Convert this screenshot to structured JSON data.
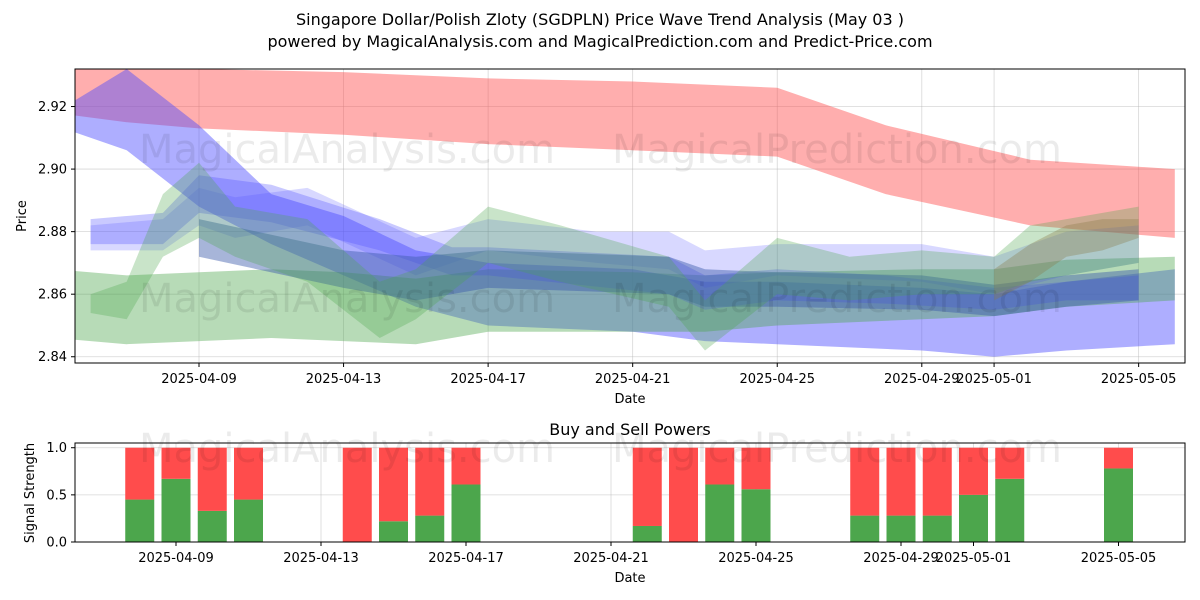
{
  "title_line1": "Singapore Dollar/Polish Zloty (SGDPLN) Price Wave Trend Analysis (May 03 )",
  "title_line2": "powered by MagicalAnalysis.com and MagicalPrediction.com and Predict-Price.com",
  "watermarks": [
    "MagicalAnalysis.com",
    "MagicalPrediction.com"
  ],
  "colors": {
    "red": "#ff4c4c",
    "green": "#4ca64c",
    "blue": "#4c4cff",
    "purple": "#9a4ccc"
  },
  "chart_data": [
    {
      "type": "area",
      "title": "",
      "xlabel": "Date",
      "ylabel": "Price",
      "xlim": [
        "2025-04-05",
        "2025-05-06"
      ],
      "ylim": [
        2.838,
        2.932
      ],
      "yticks": [
        2.84,
        2.86,
        2.88,
        2.9,
        2.92
      ],
      "ytick_labels": [
        "2.84",
        "2.86",
        "2.88",
        "2.90",
        "2.92"
      ],
      "xticks": [
        "2025-04-09",
        "2025-04-13",
        "2025-04-17",
        "2025-04-21",
        "2025-04-25",
        "2025-04-29",
        "2025-05-01",
        "2025-05-05"
      ],
      "bands": [
        {
          "name": "red long-term upper",
          "color": "#ff4c4c",
          "opacity": 0.45,
          "x": [
            "2025-04-05",
            "2025-04-07",
            "2025-04-09",
            "2025-04-13",
            "2025-04-17",
            "2025-04-21",
            "2025-04-25",
            "2025-04-28",
            "2025-05-02",
            "2025-05-06"
          ],
          "upper": [
            2.932,
            2.932,
            2.932,
            2.931,
            2.929,
            2.928,
            2.926,
            2.914,
            2.903,
            2.9
          ],
          "lower": [
            2.918,
            2.915,
            2.913,
            2.911,
            2.908,
            2.906,
            2.904,
            2.892,
            2.882,
            2.878
          ]
        },
        {
          "name": "blue long-term lower",
          "color": "#4c4cff",
          "opacity": 0.45,
          "x": [
            "2025-04-05",
            "2025-04-07",
            "2025-04-09",
            "2025-04-11",
            "2025-04-13",
            "2025-04-15",
            "2025-04-17",
            "2025-04-21",
            "2025-04-23",
            "2025-04-25",
            "2025-04-29",
            "2025-05-01",
            "2025-05-03",
            "2025-05-06"
          ],
          "upper": [
            2.918,
            2.932,
            2.914,
            2.892,
            2.885,
            2.874,
            2.87,
            2.868,
            2.864,
            2.864,
            2.862,
            2.86,
            2.864,
            2.868
          ],
          "lower": [
            2.914,
            2.906,
            2.888,
            2.876,
            2.866,
            2.856,
            2.85,
            2.848,
            2.845,
            2.844,
            2.842,
            2.84,
            2.842,
            2.844
          ]
        },
        {
          "name": "green long-term lower",
          "color": "#4ca64c",
          "opacity": 0.4,
          "x": [
            "2025-04-05",
            "2025-04-07",
            "2025-04-09",
            "2025-04-11",
            "2025-04-13",
            "2025-04-15",
            "2025-04-17",
            "2025-04-21",
            "2025-04-23",
            "2025-04-25",
            "2025-04-29",
            "2025-05-01",
            "2025-05-03",
            "2025-05-06"
          ],
          "upper": [
            2.868,
            2.866,
            2.867,
            2.868,
            2.867,
            2.865,
            2.868,
            2.867,
            2.866,
            2.867,
            2.868,
            2.868,
            2.871,
            2.872
          ],
          "lower": [
            2.846,
            2.844,
            2.845,
            2.846,
            2.845,
            2.844,
            2.848,
            2.848,
            2.848,
            2.85,
            2.852,
            2.853,
            2.856,
            2.858
          ]
        },
        {
          "name": "blue mid wave",
          "color": "#4c4cff",
          "opacity": 0.3,
          "x": [
            "2025-04-06",
            "2025-04-08",
            "2025-04-09",
            "2025-04-11",
            "2025-04-14",
            "2025-04-16",
            "2025-04-17",
            "2025-04-22",
            "2025-04-23",
            "2025-04-25",
            "2025-04-28",
            "2025-05-01",
            "2025-05-03",
            "2025-05-05"
          ],
          "upper": [
            2.884,
            2.886,
            2.898,
            2.895,
            2.884,
            2.875,
            2.875,
            2.872,
            2.866,
            2.868,
            2.866,
            2.862,
            2.864,
            2.866
          ],
          "lower": [
            2.876,
            2.876,
            2.886,
            2.883,
            2.874,
            2.866,
            2.866,
            2.86,
            2.855,
            2.858,
            2.857,
            2.855,
            2.858,
            2.858
          ]
        },
        {
          "name": "blue short wave",
          "color": "#4c4cff",
          "opacity": 0.22,
          "x": [
            "2025-04-06",
            "2025-04-08",
            "2025-04-09",
            "2025-04-10",
            "2025-04-12",
            "2025-04-15",
            "2025-04-17",
            "2025-04-20",
            "2025-04-22",
            "2025-04-23",
            "2025-04-25",
            "2025-04-29",
            "2025-05-01",
            "2025-05-03",
            "2025-05-05"
          ],
          "upper": [
            2.882,
            2.884,
            2.894,
            2.891,
            2.894,
            2.878,
            2.884,
            2.88,
            2.88,
            2.874,
            2.876,
            2.876,
            2.872,
            2.88,
            2.882
          ],
          "lower": [
            2.874,
            2.874,
            2.882,
            2.878,
            2.882,
            2.866,
            2.874,
            2.87,
            2.868,
            2.862,
            2.866,
            2.864,
            2.86,
            2.866,
            2.87
          ]
        },
        {
          "name": "steelblue trend",
          "color": "#3c5caa",
          "opacity": 0.45,
          "x": [
            "2025-04-09",
            "2025-04-13",
            "2025-04-15",
            "2025-04-17",
            "2025-04-22",
            "2025-04-23",
            "2025-04-25",
            "2025-04-29",
            "2025-05-01",
            "2025-05-03",
            "2025-05-05"
          ],
          "upper": [
            2.884,
            2.874,
            2.872,
            2.874,
            2.872,
            2.868,
            2.867,
            2.866,
            2.863,
            2.866,
            2.868
          ],
          "lower": [
            2.872,
            2.862,
            2.858,
            2.862,
            2.86,
            2.856,
            2.856,
            2.855,
            2.853,
            2.856,
            2.858
          ]
        },
        {
          "name": "green short wave",
          "color": "#4ca64c",
          "opacity": 0.3,
          "x": [
            "2025-04-06",
            "2025-04-07",
            "2025-04-08",
            "2025-04-09",
            "2025-04-10",
            "2025-04-12",
            "2025-04-14",
            "2025-04-15",
            "2025-04-17",
            "2025-04-19",
            "2025-04-22",
            "2025-04-23",
            "2025-04-25",
            "2025-04-27",
            "2025-04-29",
            "2025-05-01",
            "2025-05-02",
            "2025-05-03",
            "2025-05-05"
          ],
          "upper": [
            2.86,
            2.864,
            2.892,
            2.902,
            2.888,
            2.884,
            2.864,
            2.868,
            2.888,
            2.882,
            2.872,
            2.858,
            2.878,
            2.872,
            2.874,
            2.872,
            2.882,
            2.884,
            2.888
          ],
          "lower": [
            2.854,
            2.852,
            2.872,
            2.878,
            2.872,
            2.864,
            2.846,
            2.852,
            2.87,
            2.864,
            2.856,
            2.842,
            2.86,
            2.858,
            2.86,
            2.86,
            2.864,
            2.866,
            2.87
          ]
        },
        {
          "name": "olive forecast",
          "color": "#8a7a4a",
          "opacity": 0.35,
          "x": [
            "2025-05-01",
            "2025-05-02",
            "2025-05-03",
            "2025-05-04",
            "2025-05-05"
          ],
          "upper": [
            2.868,
            2.876,
            2.882,
            2.884,
            2.884
          ],
          "lower": [
            2.858,
            2.864,
            2.872,
            2.874,
            2.878
          ]
        }
      ]
    },
    {
      "type": "bar",
      "title": "Buy and Sell Powers",
      "xlabel": "Date",
      "ylabel": "Signal Strength",
      "ylim": [
        0,
        1.05
      ],
      "yticks": [
        0.0,
        0.5,
        1.0
      ],
      "ytick_labels": [
        "0.0",
        "0.5",
        "1.0"
      ],
      "xticks": [
        "2025-04-09",
        "2025-04-13",
        "2025-04-17",
        "2025-04-21",
        "2025-04-25",
        "2025-04-29",
        "2025-05-01",
        "2025-05-05"
      ],
      "series": [
        {
          "name": "Buy",
          "color": "#4ca64c"
        },
        {
          "name": "Sell",
          "color": "#ff4c4c"
        }
      ],
      "dates": [
        "2025-04-08",
        "2025-04-09",
        "2025-04-10",
        "2025-04-11",
        "2025-04-14",
        "2025-04-15",
        "2025-04-16",
        "2025-04-17",
        "2025-04-22",
        "2025-04-23",
        "2025-04-24",
        "2025-04-25",
        "2025-04-28",
        "2025-04-29",
        "2025-04-30",
        "2025-05-01",
        "2025-05-02",
        "2025-05-05"
      ],
      "buy": [
        0.45,
        0.67,
        0.33,
        0.45,
        0.0,
        0.22,
        0.28,
        0.61,
        0.17,
        0.0,
        0.61,
        0.56,
        0.28,
        0.28,
        0.28,
        0.5,
        0.67,
        0.78
      ],
      "sell": [
        0.55,
        0.33,
        0.67,
        0.55,
        1.0,
        0.78,
        0.72,
        0.39,
        0.83,
        1.0,
        0.39,
        0.44,
        0.72,
        0.72,
        0.72,
        0.5,
        0.33,
        0.22
      ]
    }
  ]
}
